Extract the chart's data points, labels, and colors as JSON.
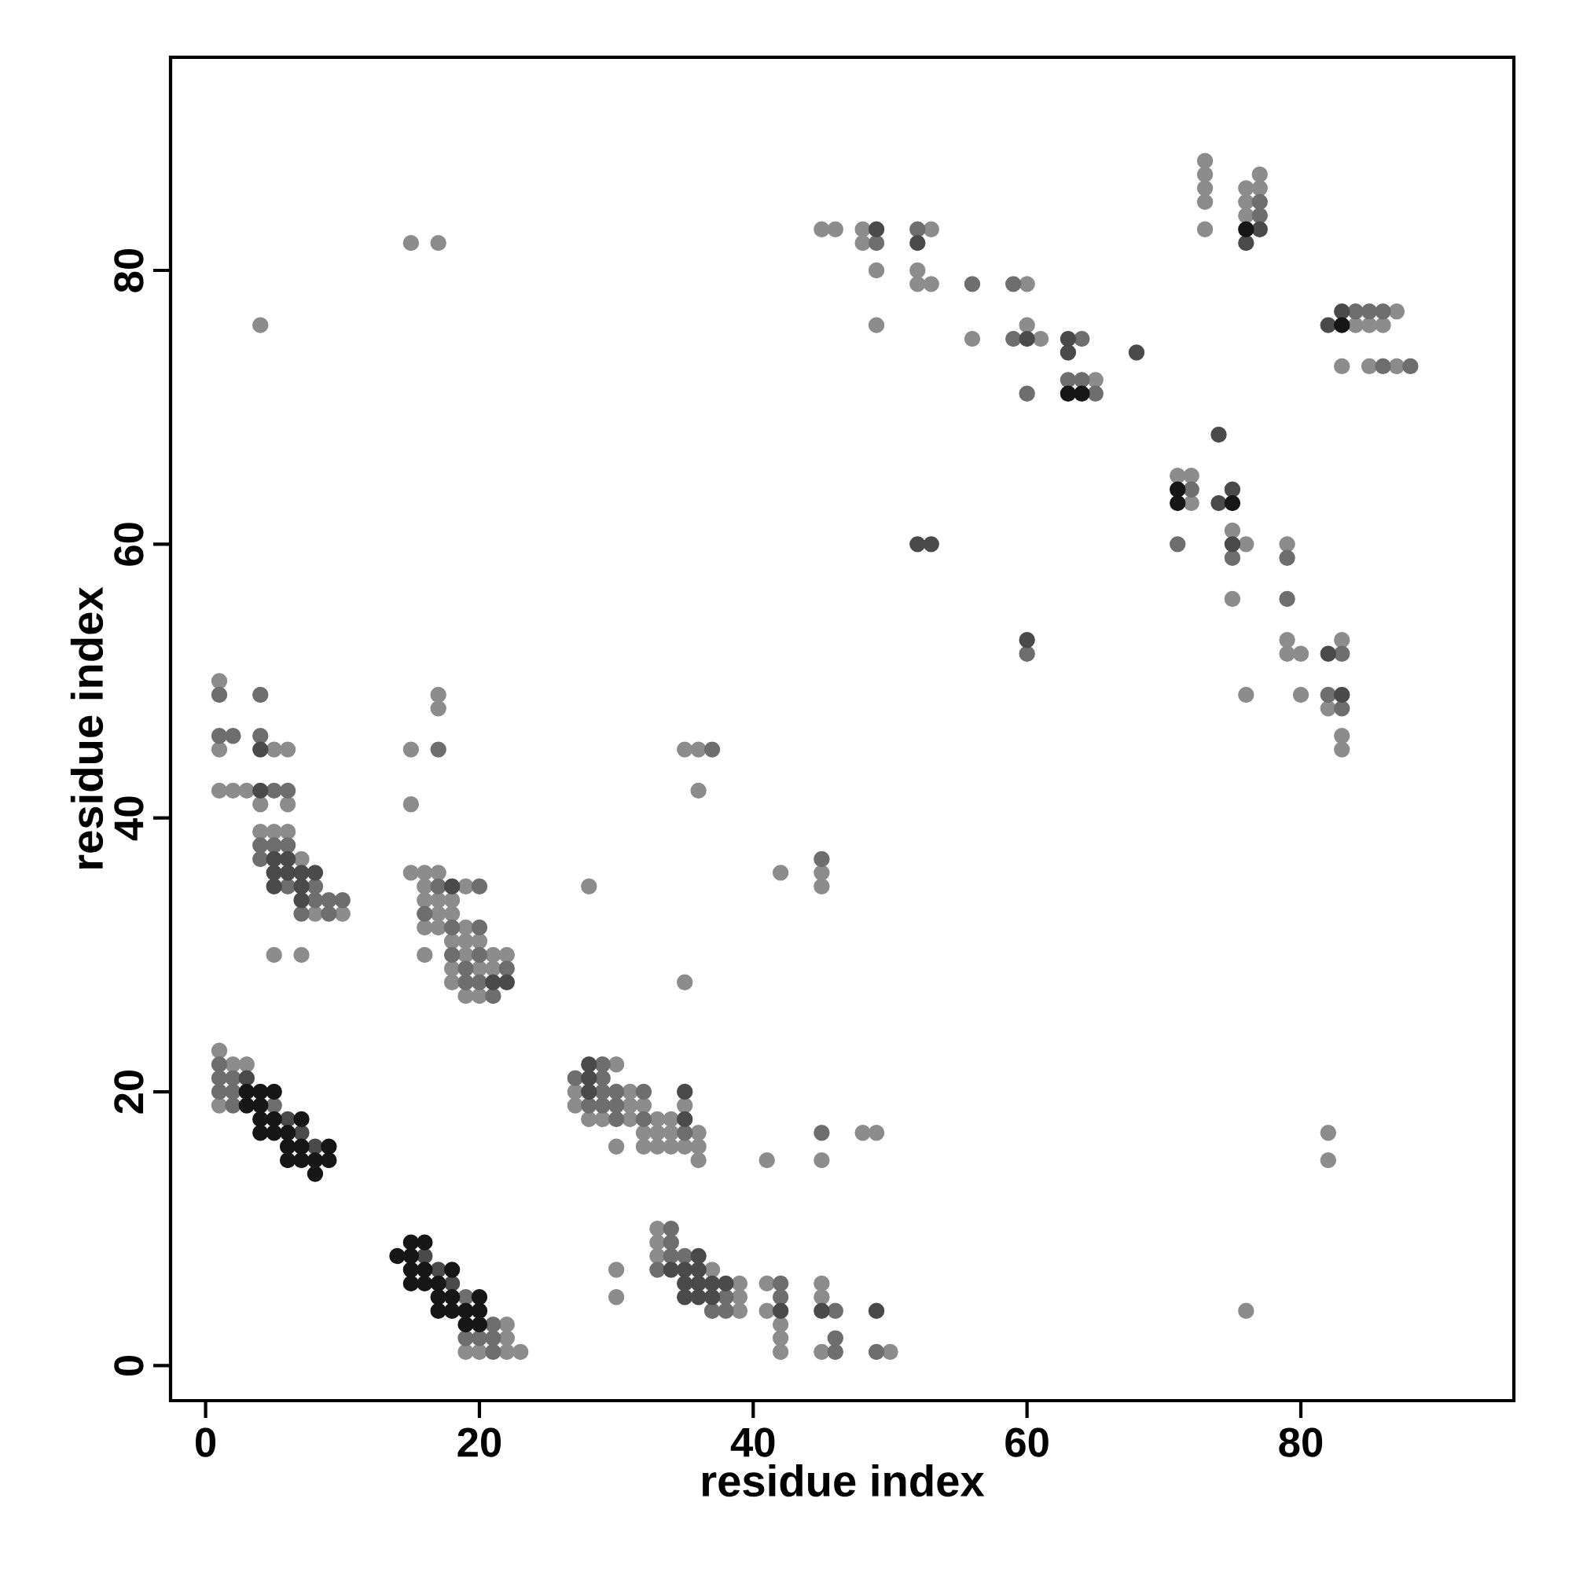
{
  "chart_data": {
    "type": "scatter",
    "xlabel": "residue index",
    "ylabel": "residue index",
    "xlim": [
      -2.56,
      95.56
    ],
    "ylim": [
      -2.56,
      95.56
    ],
    "xticks": [
      0,
      20,
      40,
      60,
      80
    ],
    "yticks": [
      0,
      20,
      40,
      60,
      80
    ],
    "marker": "circle",
    "series": [
      {
        "color": "#8c8c8c",
        "x": [
          1,
          1,
          5,
          6,
          1,
          2,
          3,
          4,
          6,
          4,
          5,
          6,
          7,
          8,
          10,
          5,
          7,
          4,
          1,
          2,
          3,
          1,
          17,
          17,
          15,
          15,
          15,
          16,
          17,
          16,
          19,
          16,
          17,
          18,
          17,
          18,
          16,
          17,
          19,
          18,
          19,
          20,
          16,
          19,
          21,
          22,
          18,
          20,
          21,
          18,
          19,
          20,
          15,
          17,
          22,
          22,
          19,
          20,
          22,
          23,
          30,
          27,
          31,
          27,
          31,
          32,
          35,
          28,
          29,
          31,
          33,
          34,
          32,
          33,
          34,
          36,
          48,
          49,
          30,
          32,
          33,
          34,
          35,
          36,
          36,
          41,
          45,
          33,
          33,
          33,
          30,
          37,
          39,
          41,
          45,
          30,
          39,
          45,
          39,
          41,
          42,
          42,
          42,
          45,
          50,
          28,
          35,
          35,
          36,
          36,
          42,
          45,
          45,
          82,
          82,
          76,
          73,
          73,
          77,
          73,
          76,
          77,
          73,
          76,
          76,
          45,
          46,
          48,
          53,
          73,
          48,
          49,
          52,
          52,
          53,
          60,
          87,
          49,
          60,
          84,
          85,
          86,
          56,
          61,
          83,
          85,
          87,
          65,
          71,
          72,
          72,
          75,
          76,
          79,
          75,
          79,
          83,
          79,
          80,
          76,
          80,
          82,
          83,
          83
        ],
        "values": [
          50,
          45,
          45,
          45,
          42,
          42,
          42,
          41,
          41,
          39,
          39,
          39,
          37,
          33,
          33,
          30,
          30,
          76,
          23,
          22,
          22,
          19,
          49,
          48,
          45,
          41,
          36,
          36,
          36,
          35,
          35,
          34,
          34,
          34,
          33,
          33,
          32,
          32,
          32,
          31,
          31,
          31,
          30,
          30,
          30,
          30,
          29,
          29,
          29,
          28,
          27,
          27,
          82,
          82,
          3,
          2,
          1,
          1,
          1,
          1,
          22,
          20,
          20,
          19,
          19,
          19,
          19,
          18,
          18,
          18,
          18,
          18,
          17,
          17,
          17,
          17,
          17,
          17,
          16,
          16,
          16,
          16,
          16,
          16,
          15,
          15,
          15,
          10,
          9,
          8,
          7,
          7,
          6,
          6,
          6,
          5,
          5,
          5,
          4,
          4,
          3,
          2,
          1,
          1,
          1,
          35,
          28,
          45,
          45,
          42,
          36,
          36,
          35,
          17,
          15,
          4,
          88,
          87,
          87,
          86,
          86,
          86,
          85,
          85,
          84,
          83,
          83,
          83,
          83,
          83,
          82,
          80,
          80,
          79,
          79,
          79,
          77,
          76,
          76,
          76,
          76,
          76,
          75,
          75,
          73,
          73,
          73,
          72,
          65,
          65,
          63,
          61,
          60,
          60,
          56,
          53,
          53,
          52,
          52,
          49,
          49,
          48,
          46,
          45
        ]
      },
      {
        "color": "#6e6e6e",
        "x": [
          1,
          4,
          1,
          2,
          4,
          5,
          6,
          4,
          5,
          6,
          4,
          6,
          8,
          8,
          9,
          10,
          7,
          9,
          1,
          1,
          2,
          1,
          2,
          2,
          5,
          17,
          20,
          17,
          16,
          18,
          20,
          18,
          20,
          19,
          22,
          19,
          20,
          21,
          19,
          21,
          19,
          20,
          21,
          21,
          29,
          27,
          29,
          28,
          29,
          30,
          29,
          30,
          32,
          30,
          32,
          35,
          45,
          34,
          34,
          34,
          35,
          33,
          38,
          37,
          38,
          46,
          42,
          42,
          46,
          46,
          49,
          45,
          37,
          77,
          77,
          52,
          49,
          56,
          59,
          84,
          85,
          86,
          59,
          64,
          86,
          88,
          63,
          64,
          60,
          65,
          72,
          71,
          75,
          79,
          79,
          83,
          82,
          83,
          60
        ],
        "values": [
          49,
          49,
          46,
          46,
          46,
          42,
          42,
          38,
          38,
          38,
          37,
          35,
          35,
          34,
          34,
          34,
          33,
          33,
          22,
          21,
          21,
          20,
          20,
          19,
          19,
          45,
          35,
          35,
          33,
          32,
          32,
          30,
          30,
          29,
          29,
          28,
          28,
          27,
          5,
          3,
          2,
          2,
          2,
          1,
          22,
          21,
          21,
          19,
          19,
          19,
          20,
          20,
          20,
          18,
          18,
          17,
          17,
          10,
          9,
          8,
          8,
          7,
          5,
          4,
          4,
          4,
          6,
          5,
          2,
          1,
          1,
          37,
          45,
          85,
          84,
          83,
          82,
          79,
          79,
          77,
          77,
          77,
          75,
          75,
          73,
          73,
          72,
          72,
          71,
          71,
          64,
          60,
          59,
          59,
          56,
          52,
          49,
          48,
          52
        ]
      },
      {
        "color": "#4a4a4a",
        "x": [
          4,
          4,
          5,
          6,
          5,
          6,
          7,
          8,
          5,
          7,
          7,
          3,
          6,
          7,
          8,
          18,
          21,
          22,
          16,
          17,
          18,
          28,
          28,
          28,
          35,
          35,
          36,
          34,
          35,
          36,
          35,
          36,
          37,
          38,
          35,
          36,
          37,
          42,
          45,
          49,
          49,
          77,
          52,
          76,
          83,
          82,
          60,
          63,
          63,
          68,
          74,
          75,
          74,
          75,
          82,
          83,
          52,
          53,
          60
        ],
        "values": [
          45,
          42,
          37,
          37,
          36,
          36,
          36,
          36,
          35,
          35,
          34,
          21,
          18,
          17,
          16,
          35,
          28,
          28,
          8,
          7,
          6,
          22,
          21,
          20,
          20,
          18,
          8,
          7,
          7,
          7,
          6,
          6,
          6,
          6,
          5,
          5,
          5,
          4,
          4,
          4,
          83,
          83,
          82,
          82,
          77,
          76,
          75,
          75,
          74,
          74,
          68,
          64,
          63,
          60,
          52,
          49,
          60,
          60,
          53
        ]
      },
      {
        "color": "#161616",
        "x": [
          3,
          4,
          5,
          3,
          4,
          4,
          5,
          7,
          4,
          5,
          6,
          6,
          7,
          9,
          6,
          7,
          8,
          9,
          8,
          15,
          16,
          14,
          15,
          15,
          16,
          18,
          15,
          16,
          17,
          17,
          18,
          20,
          17,
          18,
          19,
          20,
          19,
          20,
          76,
          83,
          63,
          64,
          71,
          71,
          75
        ],
        "values": [
          20,
          20,
          20,
          19,
          19,
          18,
          18,
          18,
          17,
          17,
          17,
          16,
          16,
          16,
          15,
          15,
          15,
          15,
          14,
          9,
          9,
          8,
          8,
          7,
          7,
          7,
          6,
          6,
          6,
          5,
          5,
          5,
          4,
          4,
          4,
          4,
          3,
          3,
          83,
          76,
          71,
          71,
          64,
          63,
          63
        ]
      }
    ]
  }
}
